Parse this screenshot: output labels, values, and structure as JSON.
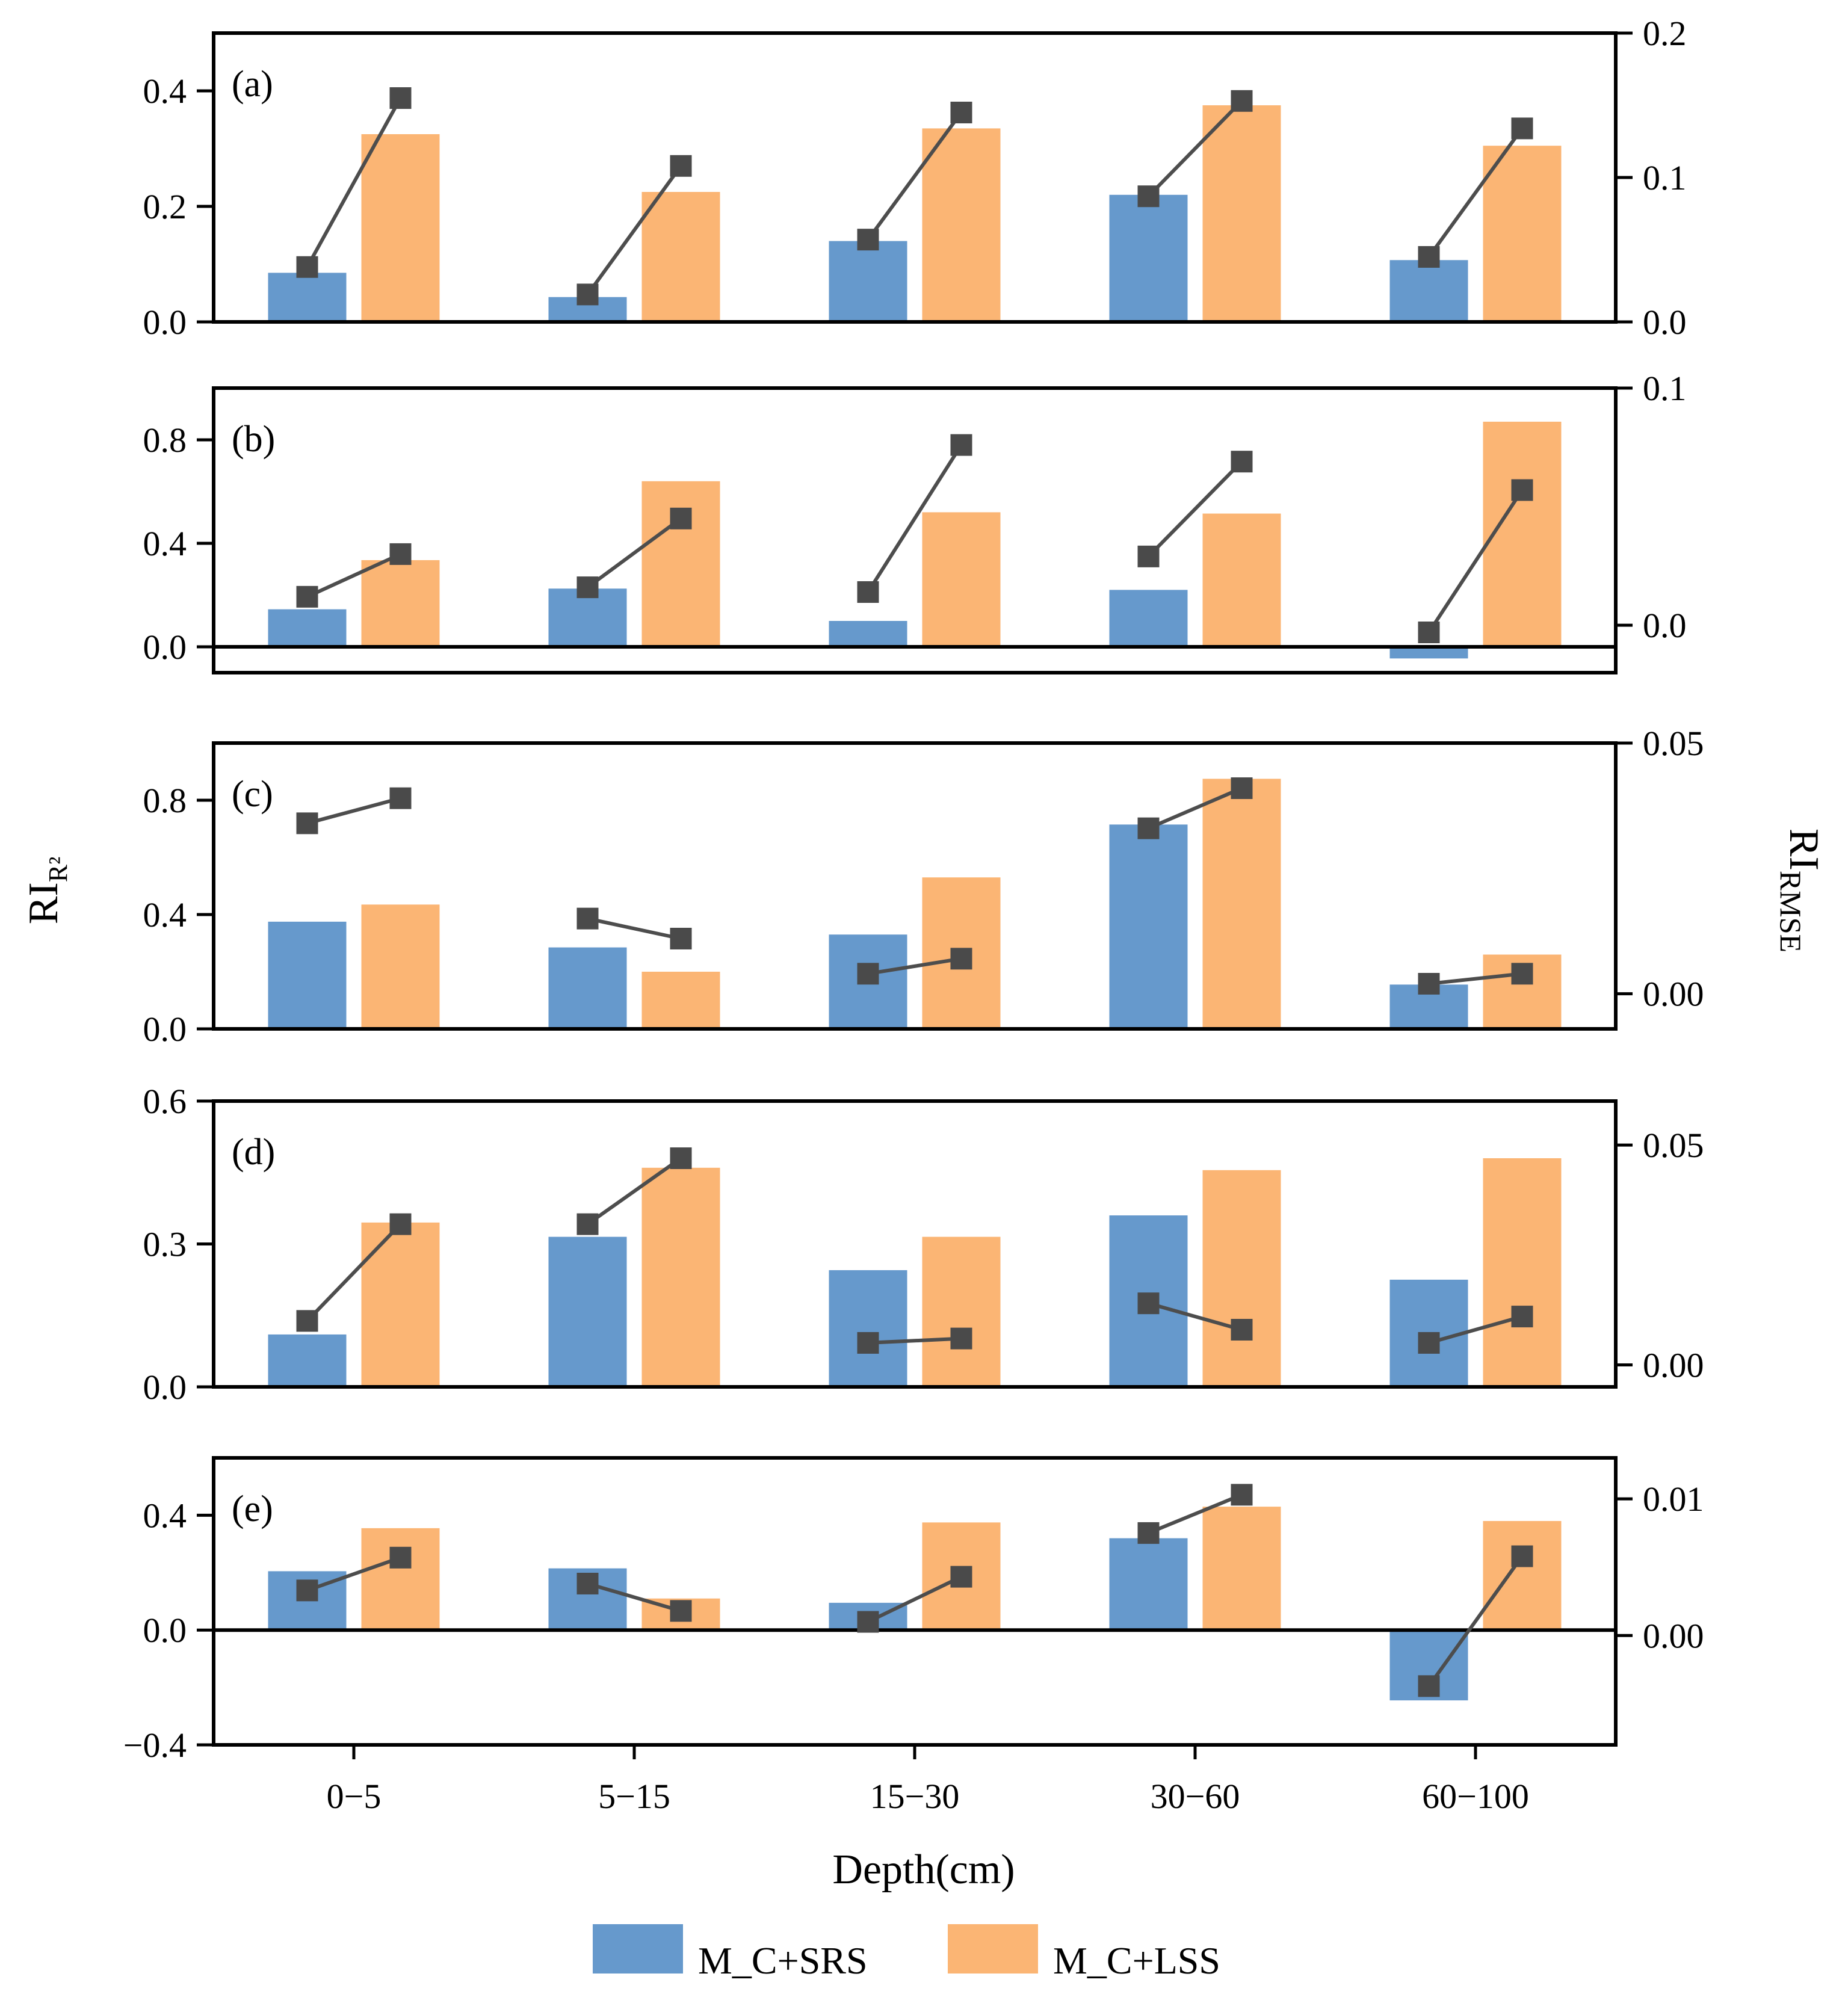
{
  "chart_data": {
    "type": "bar",
    "title": "",
    "xlabel": "Depth(cm)",
    "ylabel_left": "RI",
    "ylabel_left_sub": "R²",
    "ylabel_right": "RI",
    "ylabel_right_sub": "RMSE",
    "categories": [
      "0−5",
      "5−15",
      "15−30",
      "30−60",
      "60−100"
    ],
    "legend": {
      "position": "bottom-center",
      "entries": [
        {
          "name": "M_C+SRS",
          "color": "#6699cc"
        },
        {
          "name": "M_C+LSS",
          "color": "#fbb574"
        }
      ]
    },
    "colors": {
      "srs": "#6699cc",
      "lss": "#fbb574",
      "line": "#4d4d4d",
      "marker": "#4a4a4a"
    },
    "panels": [
      {
        "label": "(a)",
        "ylim": [
          0,
          0.5
        ],
        "yticks": [
          0,
          0.2,
          0.4
        ],
        "ytick_labels": [
          "0.0",
          "0.2",
          "0.4"
        ],
        "y2lim": [
          0,
          0.2
        ],
        "y2ticks": [
          0,
          0.1,
          0.2
        ],
        "y2tick_labels": [
          "0.0",
          "0.1",
          "0.2"
        ],
        "zero_line": false,
        "series": [
          {
            "name": "M_C+SRS",
            "values": [
              0.085,
              0.043,
              0.14,
              0.22,
              0.107
            ]
          },
          {
            "name": "M_C+LSS",
            "values": [
              0.325,
              0.225,
              0.335,
              0.375,
              0.305
            ]
          }
        ],
        "rmse": {
          "srs": [
            0.038,
            0.019,
            0.057,
            0.087,
            0.045
          ],
          "lss": [
            0.155,
            0.108,
            0.145,
            0.153,
            0.134
          ]
        }
      },
      {
        "label": "(b)",
        "ylim": [
          -0.1,
          1.0
        ],
        "yticks": [
          0,
          0.4,
          0.8
        ],
        "ytick_labels": [
          "0.0",
          "0.4",
          "0.8"
        ],
        "y2lim": [
          -0.02,
          0.1
        ],
        "y2ticks": [
          0,
          0.1
        ],
        "y2tick_labels": [
          "0.0",
          "0.1"
        ],
        "zero_line": true,
        "series": [
          {
            "name": "M_C+SRS",
            "values": [
              0.145,
              0.225,
              0.1,
              0.22,
              -0.045
            ]
          },
          {
            "name": "M_C+LSS",
            "values": [
              0.335,
              0.64,
              0.52,
              0.515,
              0.87
            ]
          }
        ],
        "rmse": {
          "srs": [
            0.012,
            0.016,
            0.014,
            0.029,
            -0.003
          ],
          "lss": [
            0.03,
            0.045,
            0.076,
            0.069,
            0.057
          ]
        }
      },
      {
        "label": "(c)",
        "ylim": [
          0,
          1.0
        ],
        "yticks": [
          0,
          0.4,
          0.8
        ],
        "ytick_labels": [
          "0.0",
          "0.4",
          "0.8"
        ],
        "y2lim": [
          -0.007,
          0.05
        ],
        "y2ticks": [
          0,
          0.05
        ],
        "y2tick_labels": [
          "0.00",
          "0.05"
        ],
        "zero_line": false,
        "series": [
          {
            "name": "M_C+SRS",
            "values": [
              0.375,
              0.285,
              0.33,
              0.715,
              0.155
            ]
          },
          {
            "name": "M_C+LSS",
            "values": [
              0.435,
              0.2,
              0.53,
              0.875,
              0.26
            ]
          }
        ],
        "rmse": {
          "srs": [
            0.034,
            0.015,
            0.004,
            0.033,
            0.002
          ],
          "lss": [
            0.039,
            0.011,
            0.007,
            0.041,
            0.004
          ]
        }
      },
      {
        "label": "(d)",
        "ylim": [
          0,
          0.6
        ],
        "yticks": [
          0,
          0.3,
          0.6
        ],
        "ytick_labels": [
          "0.0",
          "0.3",
          "0.6"
        ],
        "y2lim": [
          -0.005,
          0.06
        ],
        "y2ticks": [
          0,
          0.05
        ],
        "y2tick_labels": [
          "0.00",
          "0.05"
        ],
        "zero_line": false,
        "series": [
          {
            "name": "M_C+SRS",
            "values": [
              0.11,
              0.315,
              0.245,
              0.36,
              0.225
            ]
          },
          {
            "name": "M_C+LSS",
            "values": [
              0.345,
              0.46,
              0.315,
              0.455,
              0.48
            ]
          }
        ],
        "rmse": {
          "srs": [
            0.01,
            0.032,
            0.005,
            0.014,
            0.005
          ],
          "lss": [
            0.032,
            0.047,
            0.006,
            0.008,
            0.011
          ]
        }
      },
      {
        "label": "(e)",
        "ylim": [
          -0.4,
          0.6
        ],
        "yticks": [
          -0.4,
          0,
          0.4
        ],
        "ytick_labels": [
          "−0.4",
          "0.0",
          "0.4"
        ],
        "y2lim": [
          -0.008,
          0.013
        ],
        "y2ticks": [
          0,
          0.01
        ],
        "y2tick_labels": [
          "0.00",
          "0.01"
        ],
        "zero_line": true,
        "series": [
          {
            "name": "M_C+SRS",
            "values": [
              0.205,
              0.215,
              0.095,
              0.32,
              -0.245
            ]
          },
          {
            "name": "M_C+LSS",
            "values": [
              0.355,
              0.11,
              0.375,
              0.43,
              0.38
            ]
          }
        ],
        "rmse": {
          "srs": [
            0.0033,
            0.0038,
            0.001,
            0.0075,
            -0.0037
          ],
          "lss": [
            0.0057,
            0.0018,
            0.0043,
            0.0103,
            0.0058
          ]
        }
      }
    ]
  }
}
